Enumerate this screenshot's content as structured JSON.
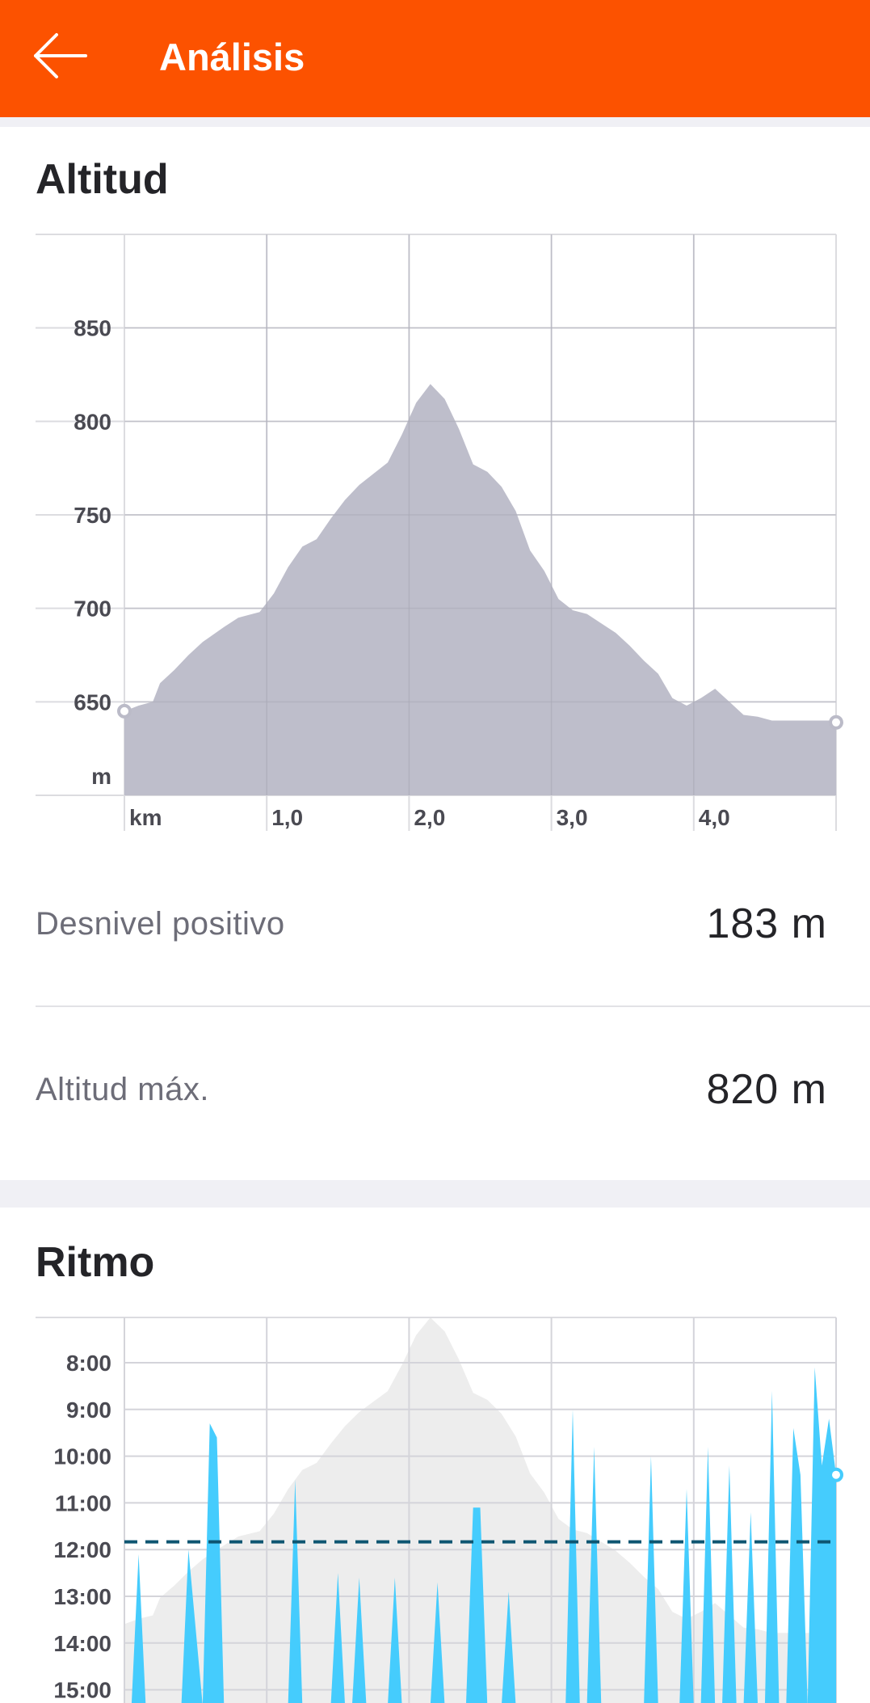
{
  "header": {
    "title": "Análisis",
    "back_icon": "arrow-left-icon",
    "bg_color": "#FC5200"
  },
  "sections": {
    "altitude": {
      "title": "Altitud",
      "stats": [
        {
          "label": "Desnivel positivo",
          "value": "183 m"
        },
        {
          "label": "Altitud máx.",
          "value": "820 m"
        }
      ]
    },
    "pace": {
      "title": "Ritmo"
    }
  },
  "chart_data": [
    {
      "type": "area",
      "title": "Altitud",
      "xlabel": "km",
      "ylabel": "m",
      "x_ticks": [
        "km",
        "1,0",
        "2,0",
        "3,0",
        "4,0"
      ],
      "y_ticks": [
        "850",
        "800",
        "750",
        "700",
        "650",
        "m"
      ],
      "xlim": [
        0,
        5.0
      ],
      "ylim": [
        600,
        900
      ],
      "grid": true,
      "fill_color": "#BBBBC8",
      "x": [
        0,
        0.1,
        0.2,
        0.25,
        0.35,
        0.45,
        0.55,
        0.7,
        0.8,
        0.95,
        1.05,
        1.15,
        1.25,
        1.35,
        1.45,
        1.55,
        1.65,
        1.75,
        1.85,
        1.95,
        2.05,
        2.15,
        2.25,
        2.35,
        2.45,
        2.55,
        2.65,
        2.75,
        2.85,
        2.95,
        3.05,
        3.15,
        3.25,
        3.35,
        3.45,
        3.55,
        3.65,
        3.75,
        3.85,
        3.95,
        4.05,
        4.15,
        4.25,
        4.35,
        4.45,
        4.55,
        4.65,
        4.75,
        4.85,
        4.95,
        5.0
      ],
      "y": [
        645,
        648,
        650,
        660,
        667,
        675,
        682,
        690,
        695,
        698,
        708,
        722,
        733,
        737,
        748,
        758,
        766,
        772,
        778,
        793,
        810,
        820,
        812,
        796,
        777,
        773,
        765,
        752,
        731,
        720,
        705,
        699,
        697,
        692,
        687,
        680,
        672,
        665,
        652,
        648,
        652,
        657,
        650,
        643,
        642,
        640,
        640,
        640,
        640,
        640,
        639
      ]
    },
    {
      "type": "area",
      "title": "Ritmo",
      "y_ticks": [
        "8:00",
        "9:00",
        "10:00",
        "11:00",
        "12:00",
        "13:00",
        "14:00",
        "15:00"
      ],
      "average_pace": "11:50",
      "series_color": "#45CCFD",
      "average_line_color": "#0E5672",
      "background_altitude_color": "#EDEDED",
      "x": [
        0,
        0.05,
        0.1,
        0.15,
        0.4,
        0.45,
        0.55,
        0.6,
        0.65,
        0.7,
        0.75,
        1.15,
        1.2,
        1.25,
        1.45,
        1.5,
        1.55,
        1.6,
        1.65,
        1.7,
        1.85,
        1.9,
        1.95,
        2.15,
        2.2,
        2.25,
        2.4,
        2.45,
        2.5,
        2.55,
        2.65,
        2.7,
        2.75,
        3.1,
        3.15,
        3.2,
        3.25,
        3.3,
        3.35,
        3.4,
        3.65,
        3.7,
        3.75,
        3.8,
        3.9,
        3.95,
        4.0,
        4.05,
        4.1,
        4.15,
        4.2,
        4.25,
        4.3,
        4.35,
        4.4,
        4.45,
        4.5,
        4.55,
        4.6,
        4.65,
        4.7,
        4.75,
        4.8,
        4.85,
        4.9,
        4.95,
        5.0
      ],
      "y": [
        16,
        16,
        12.1,
        16,
        16,
        12.0,
        16,
        9.3,
        9.6,
        16,
        16,
        16,
        10.5,
        16,
        16,
        12.5,
        16,
        16,
        12.6,
        16,
        16,
        12.6,
        16,
        16,
        12.7,
        16,
        16,
        11.1,
        11.1,
        16,
        16,
        12.9,
        16,
        16,
        9.0,
        16,
        16,
        9.8,
        16,
        16,
        16,
        10.0,
        16,
        16,
        16,
        10.7,
        16,
        16,
        9.8,
        16,
        16,
        10.2,
        16,
        16,
        11.2,
        16,
        16,
        8.6,
        16,
        16,
        9.4,
        10.4,
        16,
        8.1,
        10.2,
        9.2,
        10.4
      ]
    }
  ]
}
